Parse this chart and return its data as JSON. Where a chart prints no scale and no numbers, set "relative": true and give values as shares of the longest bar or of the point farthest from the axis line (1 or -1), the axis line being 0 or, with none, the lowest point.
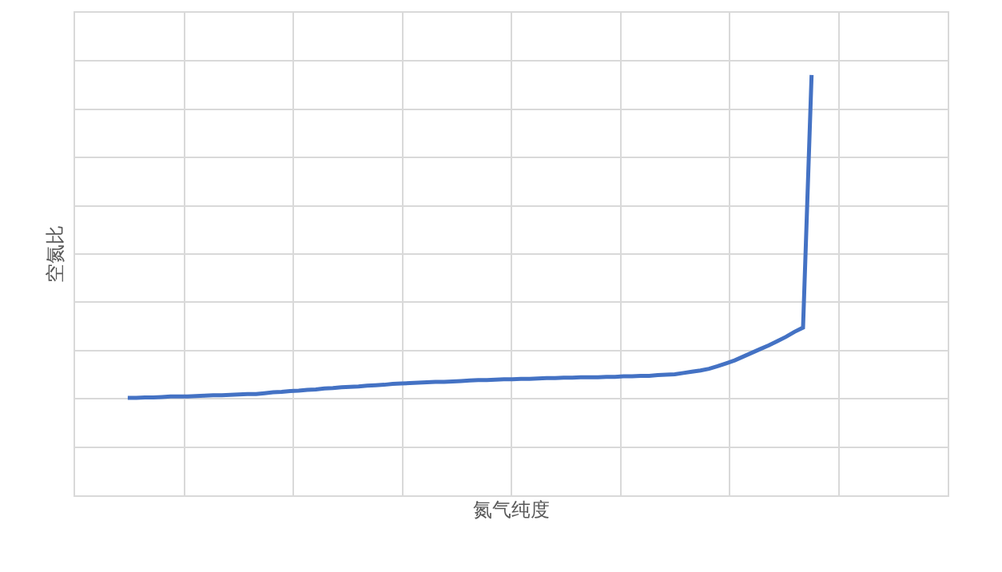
{
  "chart_data": {
    "type": "line",
    "relative": true,
    "xlabel": "氮气纯度",
    "ylabel": "空氮比",
    "grid": true,
    "marker": "none",
    "line_style": "solid",
    "categories": [
      null,
      null,
      null,
      null,
      null,
      null,
      null,
      null,
      null,
      null,
      null,
      null,
      null,
      null,
      null,
      null,
      null,
      null,
      null,
      null,
      null,
      null,
      null,
      null,
      null,
      null,
      null,
      null,
      null,
      null,
      null,
      null,
      null,
      null,
      null,
      null,
      null,
      null,
      null,
      null,
      null,
      null,
      null,
      null,
      null,
      null,
      null,
      null,
      null,
      null,
      null,
      null,
      null,
      null,
      null,
      null,
      null,
      null,
      null,
      null,
      null,
      null,
      null,
      null,
      null,
      null,
      null,
      null,
      null,
      null,
      null,
      null,
      null,
      null,
      null,
      null,
      null,
      null,
      null,
      null,
      null
    ],
    "series": [
      {
        "color": "#4472c4",
        "values": [
          0.232,
          0.232,
          0.233,
          0.233,
          0.234,
          0.235,
          0.235,
          0.235,
          0.236,
          0.237,
          0.238,
          0.238,
          0.239,
          0.24,
          0.241,
          0.241,
          0.243,
          0.245,
          0.246,
          0.248,
          0.249,
          0.251,
          0.252,
          0.254,
          0.255,
          0.257,
          0.258,
          0.259,
          0.261,
          0.262,
          0.263,
          0.265,
          0.266,
          0.267,
          0.268,
          0.269,
          0.27,
          0.27,
          0.271,
          0.272,
          0.273,
          0.274,
          0.274,
          0.275,
          0.276,
          0.276,
          0.277,
          0.277,
          0.278,
          0.279,
          0.279,
          0.28,
          0.28,
          0.281,
          0.281,
          0.281,
          0.282,
          0.282,
          0.283,
          0.283,
          0.284,
          0.284,
          0.286,
          0.287,
          0.288,
          0.291,
          0.294,
          0.297,
          0.301,
          0.307,
          0.314,
          0.321,
          0.33,
          0.339,
          0.348,
          0.357,
          0.367,
          0.377,
          0.389,
          0.399,
          1
        ]
      }
    ]
  }
}
